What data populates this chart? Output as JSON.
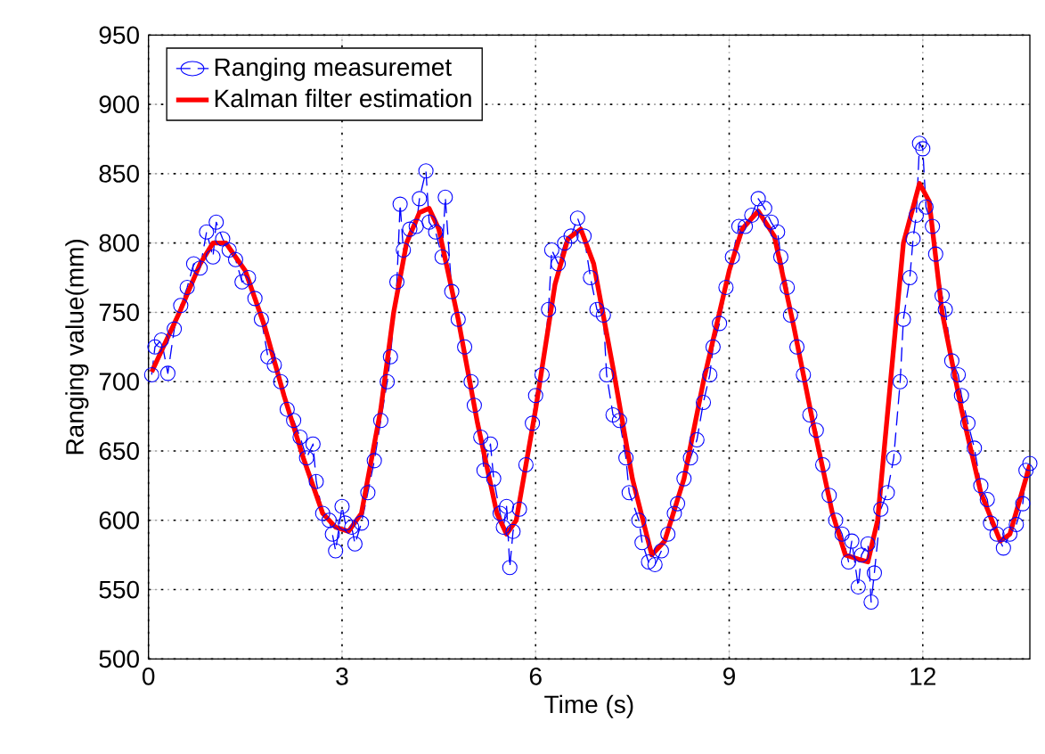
{
  "chart_data": {
    "type": "line",
    "xlabel": "Time (s)",
    "ylabel": "Ranging value(mm)",
    "xlim": [
      0,
      13.66
    ],
    "ylim": [
      500,
      950
    ],
    "xticks": [
      0,
      3,
      6,
      9,
      12
    ],
    "yticks": [
      500,
      550,
      600,
      650,
      700,
      750,
      800,
      850,
      900,
      950
    ],
    "grid": true,
    "legend": "top left",
    "series": [
      {
        "name": "Ranging measuremet",
        "color": "#0000ff",
        "marker": "circle",
        "line_style": "dashed",
        "x": [
          0.05,
          0.1,
          0.2,
          0.3,
          0.4,
          0.5,
          0.6,
          0.7,
          0.8,
          0.9,
          1.0,
          1.05,
          1.15,
          1.25,
          1.35,
          1.45,
          1.55,
          1.65,
          1.75,
          1.85,
          1.95,
          2.05,
          2.15,
          2.25,
          2.35,
          2.45,
          2.55,
          2.6,
          2.7,
          2.8,
          2.85,
          2.9,
          3.0,
          3.05,
          3.15,
          3.2,
          3.3,
          3.4,
          3.5,
          3.6,
          3.7,
          3.75,
          3.85,
          3.9,
          3.95,
          4.05,
          4.15,
          4.2,
          4.3,
          4.35,
          4.45,
          4.55,
          4.6,
          4.7,
          4.8,
          4.9,
          5.0,
          5.05,
          5.15,
          5.2,
          5.3,
          5.35,
          5.45,
          5.5,
          5.55,
          5.6,
          5.65,
          5.75,
          5.85,
          5.95,
          6.0,
          6.1,
          6.2,
          6.25,
          6.35,
          6.45,
          6.55,
          6.65,
          6.75,
          6.85,
          6.95,
          7.05,
          7.1,
          7.2,
          7.3,
          7.4,
          7.45,
          7.6,
          7.65,
          7.75,
          7.85,
          7.95,
          8.05,
          8.15,
          8.2,
          8.3,
          8.4,
          8.5,
          8.6,
          8.7,
          8.75,
          8.85,
          8.95,
          9.05,
          9.15,
          9.25,
          9.35,
          9.45,
          9.55,
          9.65,
          9.75,
          9.8,
          9.9,
          9.95,
          10.05,
          10.15,
          10.25,
          10.35,
          10.45,
          10.55,
          10.65,
          10.75,
          10.85,
          10.9,
          11.0,
          11.05,
          11.15,
          11.2,
          11.25,
          11.35,
          11.45,
          11.55,
          11.65,
          11.7,
          11.8,
          11.85,
          11.9,
          11.95,
          12.0,
          12.05,
          12.15,
          12.2,
          12.3,
          12.35,
          12.45,
          12.55,
          12.6,
          12.7,
          12.8,
          12.9,
          13.0,
          13.05,
          13.15,
          13.25,
          13.35,
          13.45,
          13.55,
          13.6,
          13.66
        ],
        "values": [
          705,
          725,
          730,
          706,
          738,
          755,
          768,
          785,
          782,
          808,
          790,
          815,
          803,
          795,
          788,
          772,
          775,
          760,
          745,
          718,
          712,
          700,
          680,
          672,
          660,
          645,
          655,
          628,
          605,
          600,
          590,
          578,
          610,
          598,
          595,
          583,
          598,
          620,
          643,
          672,
          700,
          718,
          772,
          828,
          795,
          810,
          812,
          832,
          852,
          815,
          808,
          790,
          833,
          765,
          745,
          725,
          700,
          683,
          660,
          636,
          655,
          630,
          605,
          595,
          610,
          566,
          592,
          608,
          640,
          670,
          690,
          705,
          752,
          795,
          785,
          800,
          805,
          818,
          805,
          775,
          752,
          748,
          705,
          676,
          672,
          645,
          620,
          600,
          584,
          570,
          568,
          578,
          590,
          605,
          612,
          630,
          645,
          658,
          685,
          705,
          725,
          742,
          768,
          790,
          812,
          812,
          820,
          832,
          825,
          815,
          808,
          790,
          768,
          748,
          725,
          705,
          676,
          665,
          640,
          618,
          600,
          590,
          570,
          585,
          552,
          575,
          583,
          541,
          562,
          608,
          620,
          645,
          700,
          745,
          775,
          803,
          820,
          872,
          868,
          826,
          812,
          792,
          762,
          752,
          715,
          705,
          690,
          670,
          652,
          625,
          615,
          598,
          590,
          580,
          590,
          597,
          612,
          636,
          641
        ]
      },
      {
        "name": "Kalman filter estimation",
        "color": "#ff0000",
        "marker": "none",
        "line_style": "solid",
        "x": [
          0.05,
          0.2,
          0.5,
          0.8,
          1.0,
          1.2,
          1.5,
          1.8,
          2.1,
          2.4,
          2.7,
          2.9,
          3.1,
          3.3,
          3.6,
          3.8,
          4.0,
          4.2,
          4.35,
          4.5,
          4.8,
          5.1,
          5.4,
          5.55,
          5.7,
          6.0,
          6.3,
          6.5,
          6.7,
          6.9,
          7.2,
          7.5,
          7.8,
          8.0,
          8.3,
          8.6,
          9.0,
          9.2,
          9.45,
          9.7,
          10.0,
          10.3,
          10.6,
          10.8,
          11.0,
          11.15,
          11.3,
          11.5,
          11.7,
          11.95,
          12.1,
          12.3,
          12.6,
          12.9,
          13.2,
          13.35,
          13.66
        ],
        "values": [
          707,
          722,
          752,
          785,
          800,
          800,
          780,
          740,
          690,
          645,
          605,
          595,
          592,
          605,
          680,
          750,
          800,
          822,
          825,
          810,
          745,
          670,
          605,
          590,
          600,
          680,
          770,
          803,
          810,
          785,
          710,
          630,
          575,
          585,
          630,
          700,
          780,
          810,
          823,
          805,
          740,
          670,
          605,
          575,
          572,
          570,
          600,
          700,
          800,
          843,
          830,
          750,
          680,
          620,
          585,
          590,
          640
        ]
      }
    ]
  }
}
